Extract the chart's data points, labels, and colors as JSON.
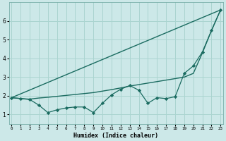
{
  "title": "",
  "xlabel": "Humidex (Indice chaleur)",
  "bg_color": "#cce8e8",
  "line_color": "#1a6b60",
  "grid_color": "#aad4d0",
  "x_ticks": [
    0,
    1,
    2,
    3,
    4,
    5,
    6,
    7,
    8,
    9,
    10,
    11,
    12,
    13,
    14,
    15,
    16,
    17,
    18,
    19,
    20,
    21,
    22,
    23
  ],
  "y_ticks": [
    1,
    2,
    3,
    4,
    5,
    6
  ],
  "xlim": [
    -0.3,
    23.3
  ],
  "ylim": [
    0.5,
    7.0
  ],
  "series": [
    {
      "x": [
        0,
        23
      ],
      "y": [
        1.9,
        6.6
      ],
      "marker": null,
      "linewidth": 1.0
    },
    {
      "x": [
        0,
        1,
        2,
        3,
        4,
        5,
        6,
        7,
        8,
        9,
        10,
        11,
        12,
        13,
        14,
        15,
        16,
        17,
        18,
        19,
        20,
        21,
        22,
        23
      ],
      "y": [
        1.9,
        1.85,
        1.82,
        1.88,
        1.92,
        1.97,
        2.02,
        2.07,
        2.12,
        2.17,
        2.25,
        2.33,
        2.42,
        2.52,
        2.6,
        2.68,
        2.76,
        2.84,
        2.92,
        3.0,
        3.2,
        4.3,
        5.5,
        6.6
      ],
      "marker": null,
      "linewidth": 1.0
    },
    {
      "x": [
        0,
        1,
        2,
        3,
        4,
        5,
        6,
        7,
        8,
        9,
        10,
        11,
        12,
        13,
        14,
        15,
        16,
        17,
        18,
        19,
        20,
        21,
        22,
        23
      ],
      "y": [
        1.9,
        1.85,
        1.8,
        1.5,
        1.1,
        1.25,
        1.35,
        1.4,
        1.4,
        1.1,
        1.6,
        2.05,
        2.35,
        2.55,
        2.3,
        1.6,
        1.9,
        1.85,
        1.95,
        3.2,
        3.6,
        4.35,
        5.5,
        6.6
      ],
      "marker": "D",
      "markersize": 2.2,
      "linewidth": 0.9
    }
  ]
}
